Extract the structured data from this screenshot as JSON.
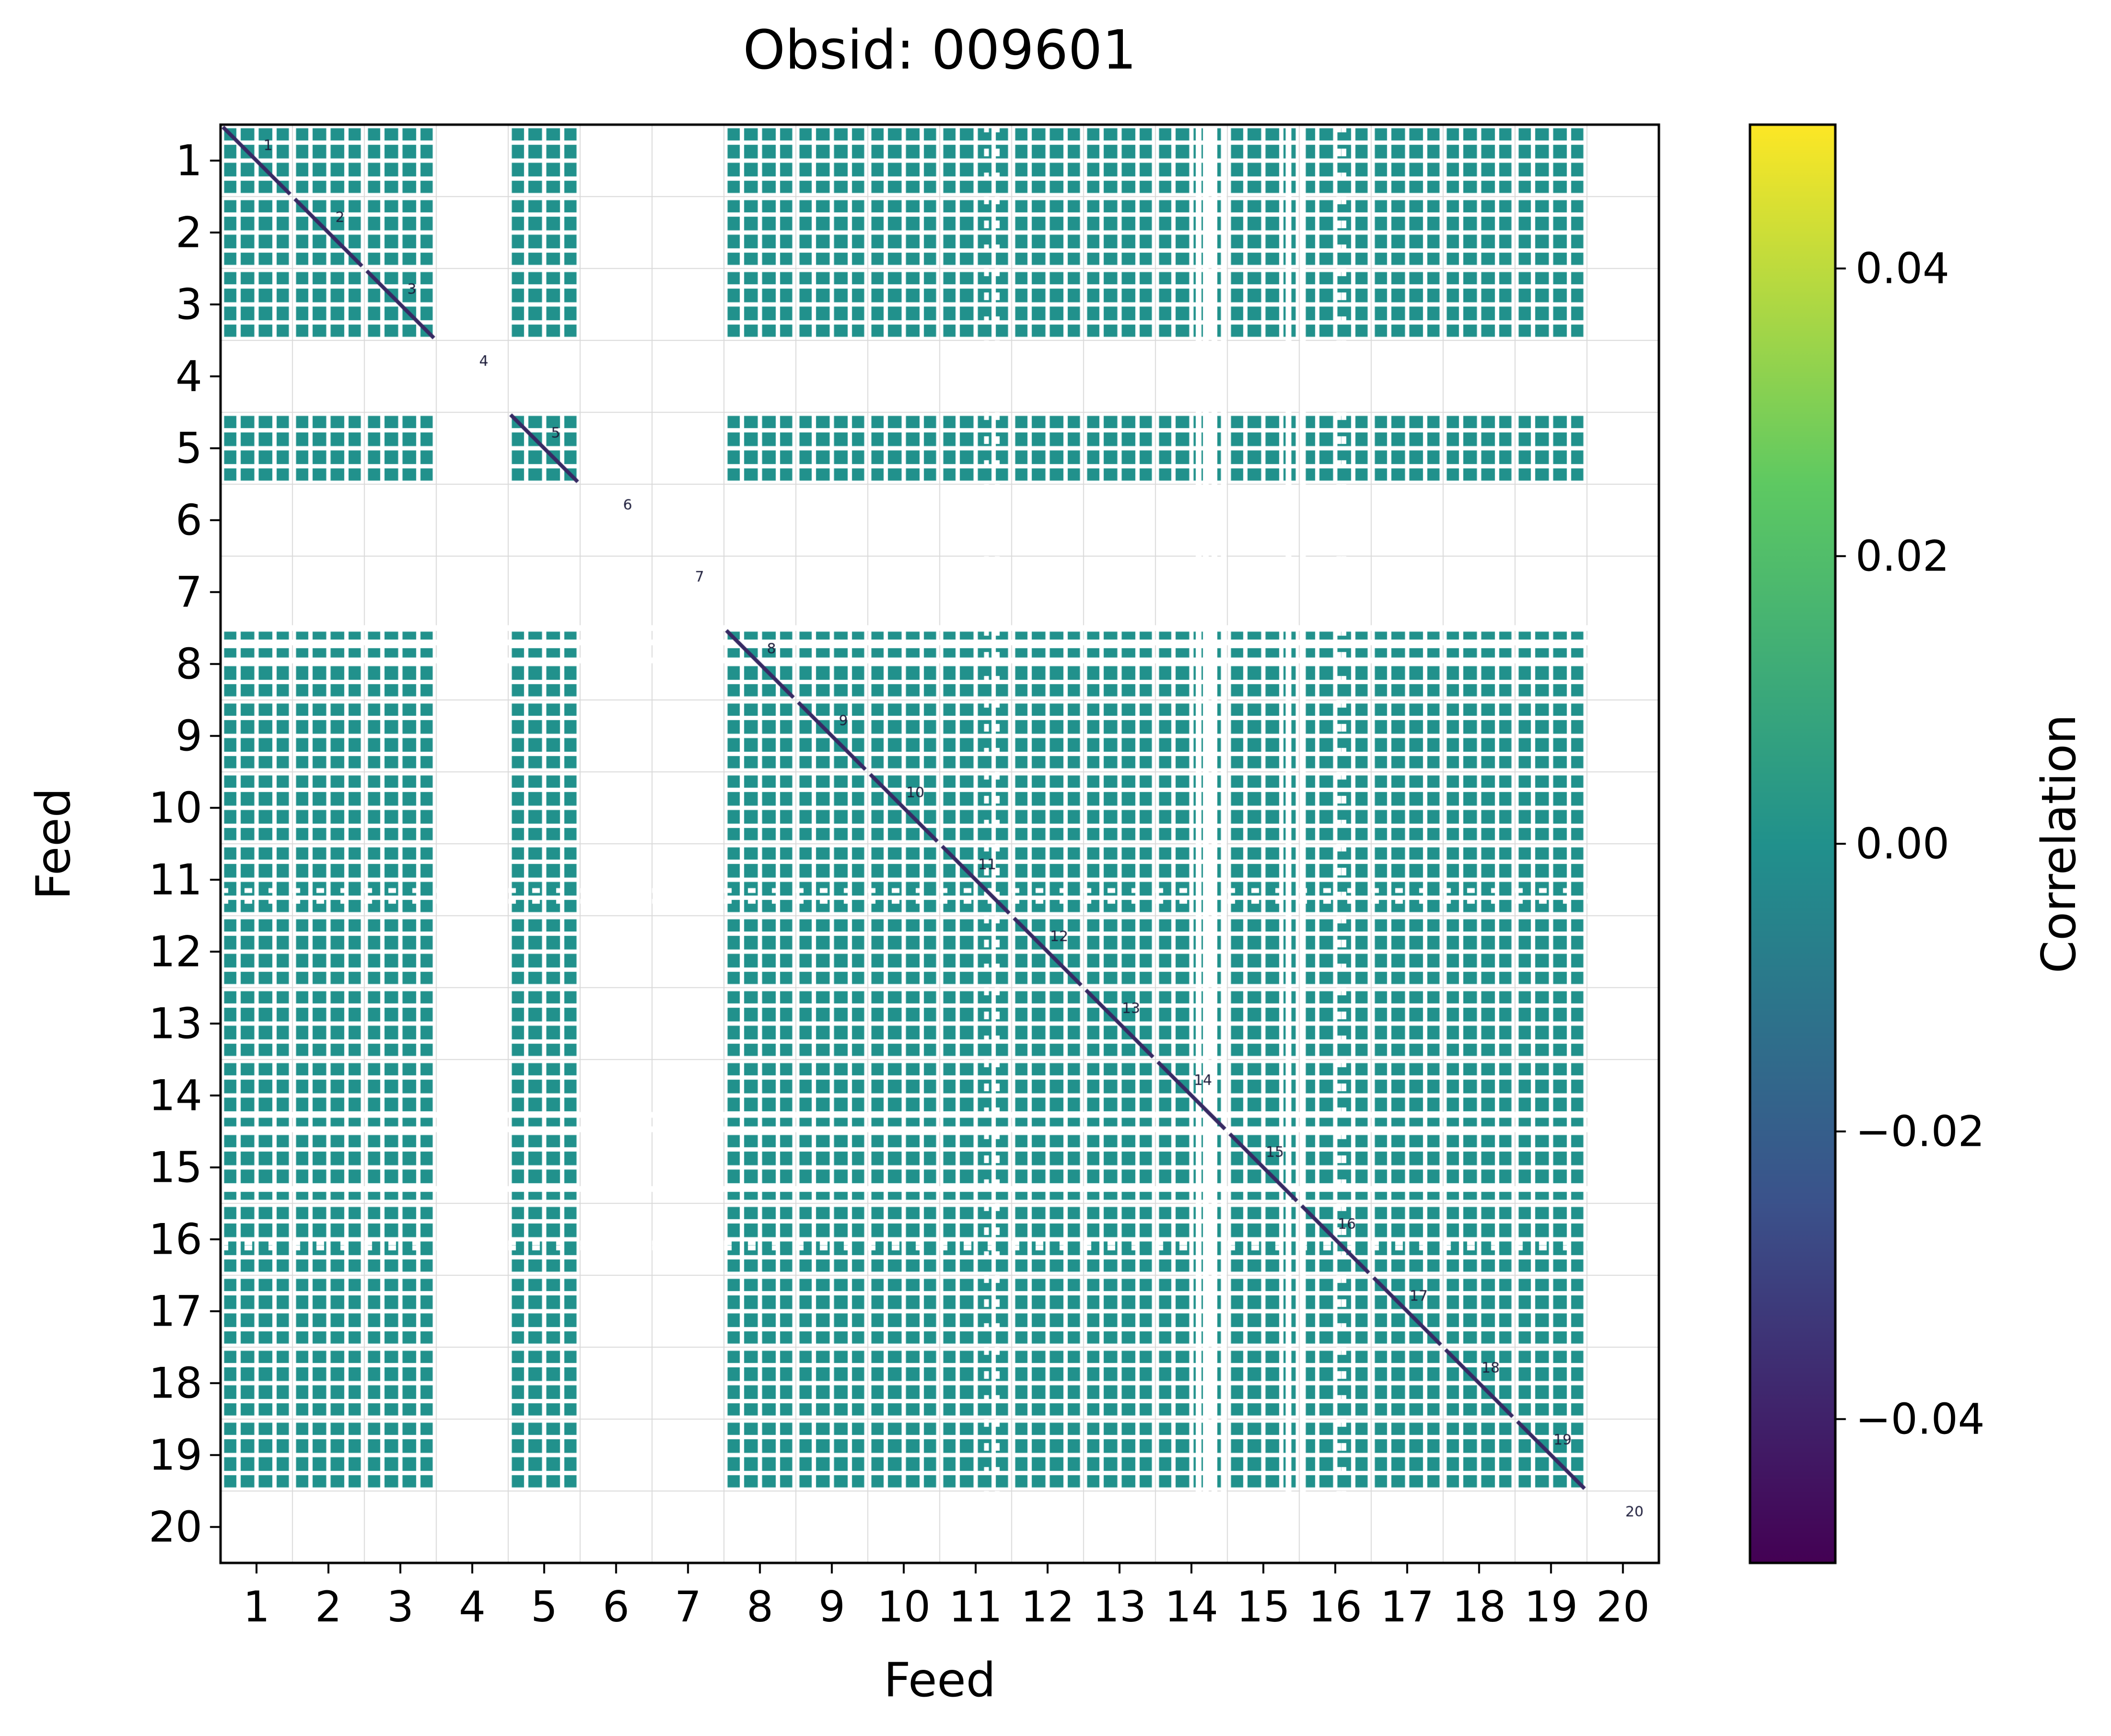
{
  "figure": {
    "background": "#ffffff"
  },
  "chart_data": {
    "type": "heatmap",
    "title": "Obsid: 009601",
    "xlabel": "Feed",
    "ylabel": "Feed",
    "feeds": [
      1,
      2,
      3,
      4,
      5,
      6,
      7,
      8,
      9,
      10,
      11,
      12,
      13,
      14,
      15,
      16,
      17,
      18,
      19,
      20
    ],
    "tick_labels": [
      "1",
      "2",
      "3",
      "4",
      "5",
      "6",
      "7",
      "8",
      "9",
      "10",
      "11",
      "12",
      "13",
      "14",
      "15",
      "16",
      "17",
      "18",
      "19",
      "20"
    ],
    "active_feeds": [
      1,
      2,
      3,
      5,
      8,
      9,
      10,
      11,
      12,
      13,
      14,
      15,
      16,
      17,
      18,
      19
    ],
    "missing_feeds": [
      4,
      6,
      7,
      20
    ],
    "y_axis_inverted": true,
    "axis_ranges": {
      "x": [
        0.5,
        20.5
      ],
      "y": [
        0.5,
        20.5
      ]
    },
    "subcells_per_feed": 4,
    "offdiag_correlation_approx": 0.0,
    "cell_color": "#21918c",
    "diagonal_line_color": "#372a63",
    "annotation_color": "#1c1c3a",
    "grid_color": "#d9d9d9",
    "flagged_rows": [
      8.0,
      8.2,
      8.45,
      14.77,
      14.97,
      15.8
    ],
    "flagged_cols": [
      14.6,
      14.7,
      14.82,
      14.95,
      15.85,
      16.05
    ],
    "flagged_rows_dashed": [
      11.65,
      11.8,
      16.55,
      16.62
    ],
    "flagged_cols_dashed": [
      11.65,
      11.8,
      16.55,
      16.62
    ],
    "colorbar": {
      "label": "Correlation",
      "tick_labels": [
        "0.04",
        "0.02",
        "0.00",
        "−0.02",
        "−0.04"
      ],
      "tick_values": [
        0.04,
        0.02,
        0.0,
        -0.02,
        -0.04
      ],
      "vmin": -0.05,
      "vmax": 0.05,
      "colormap": "viridis",
      "gradient_stops": [
        "#fde725",
        "#5ec962",
        "#21918c",
        "#3b528b",
        "#440154"
      ]
    },
    "legend": "none"
  }
}
